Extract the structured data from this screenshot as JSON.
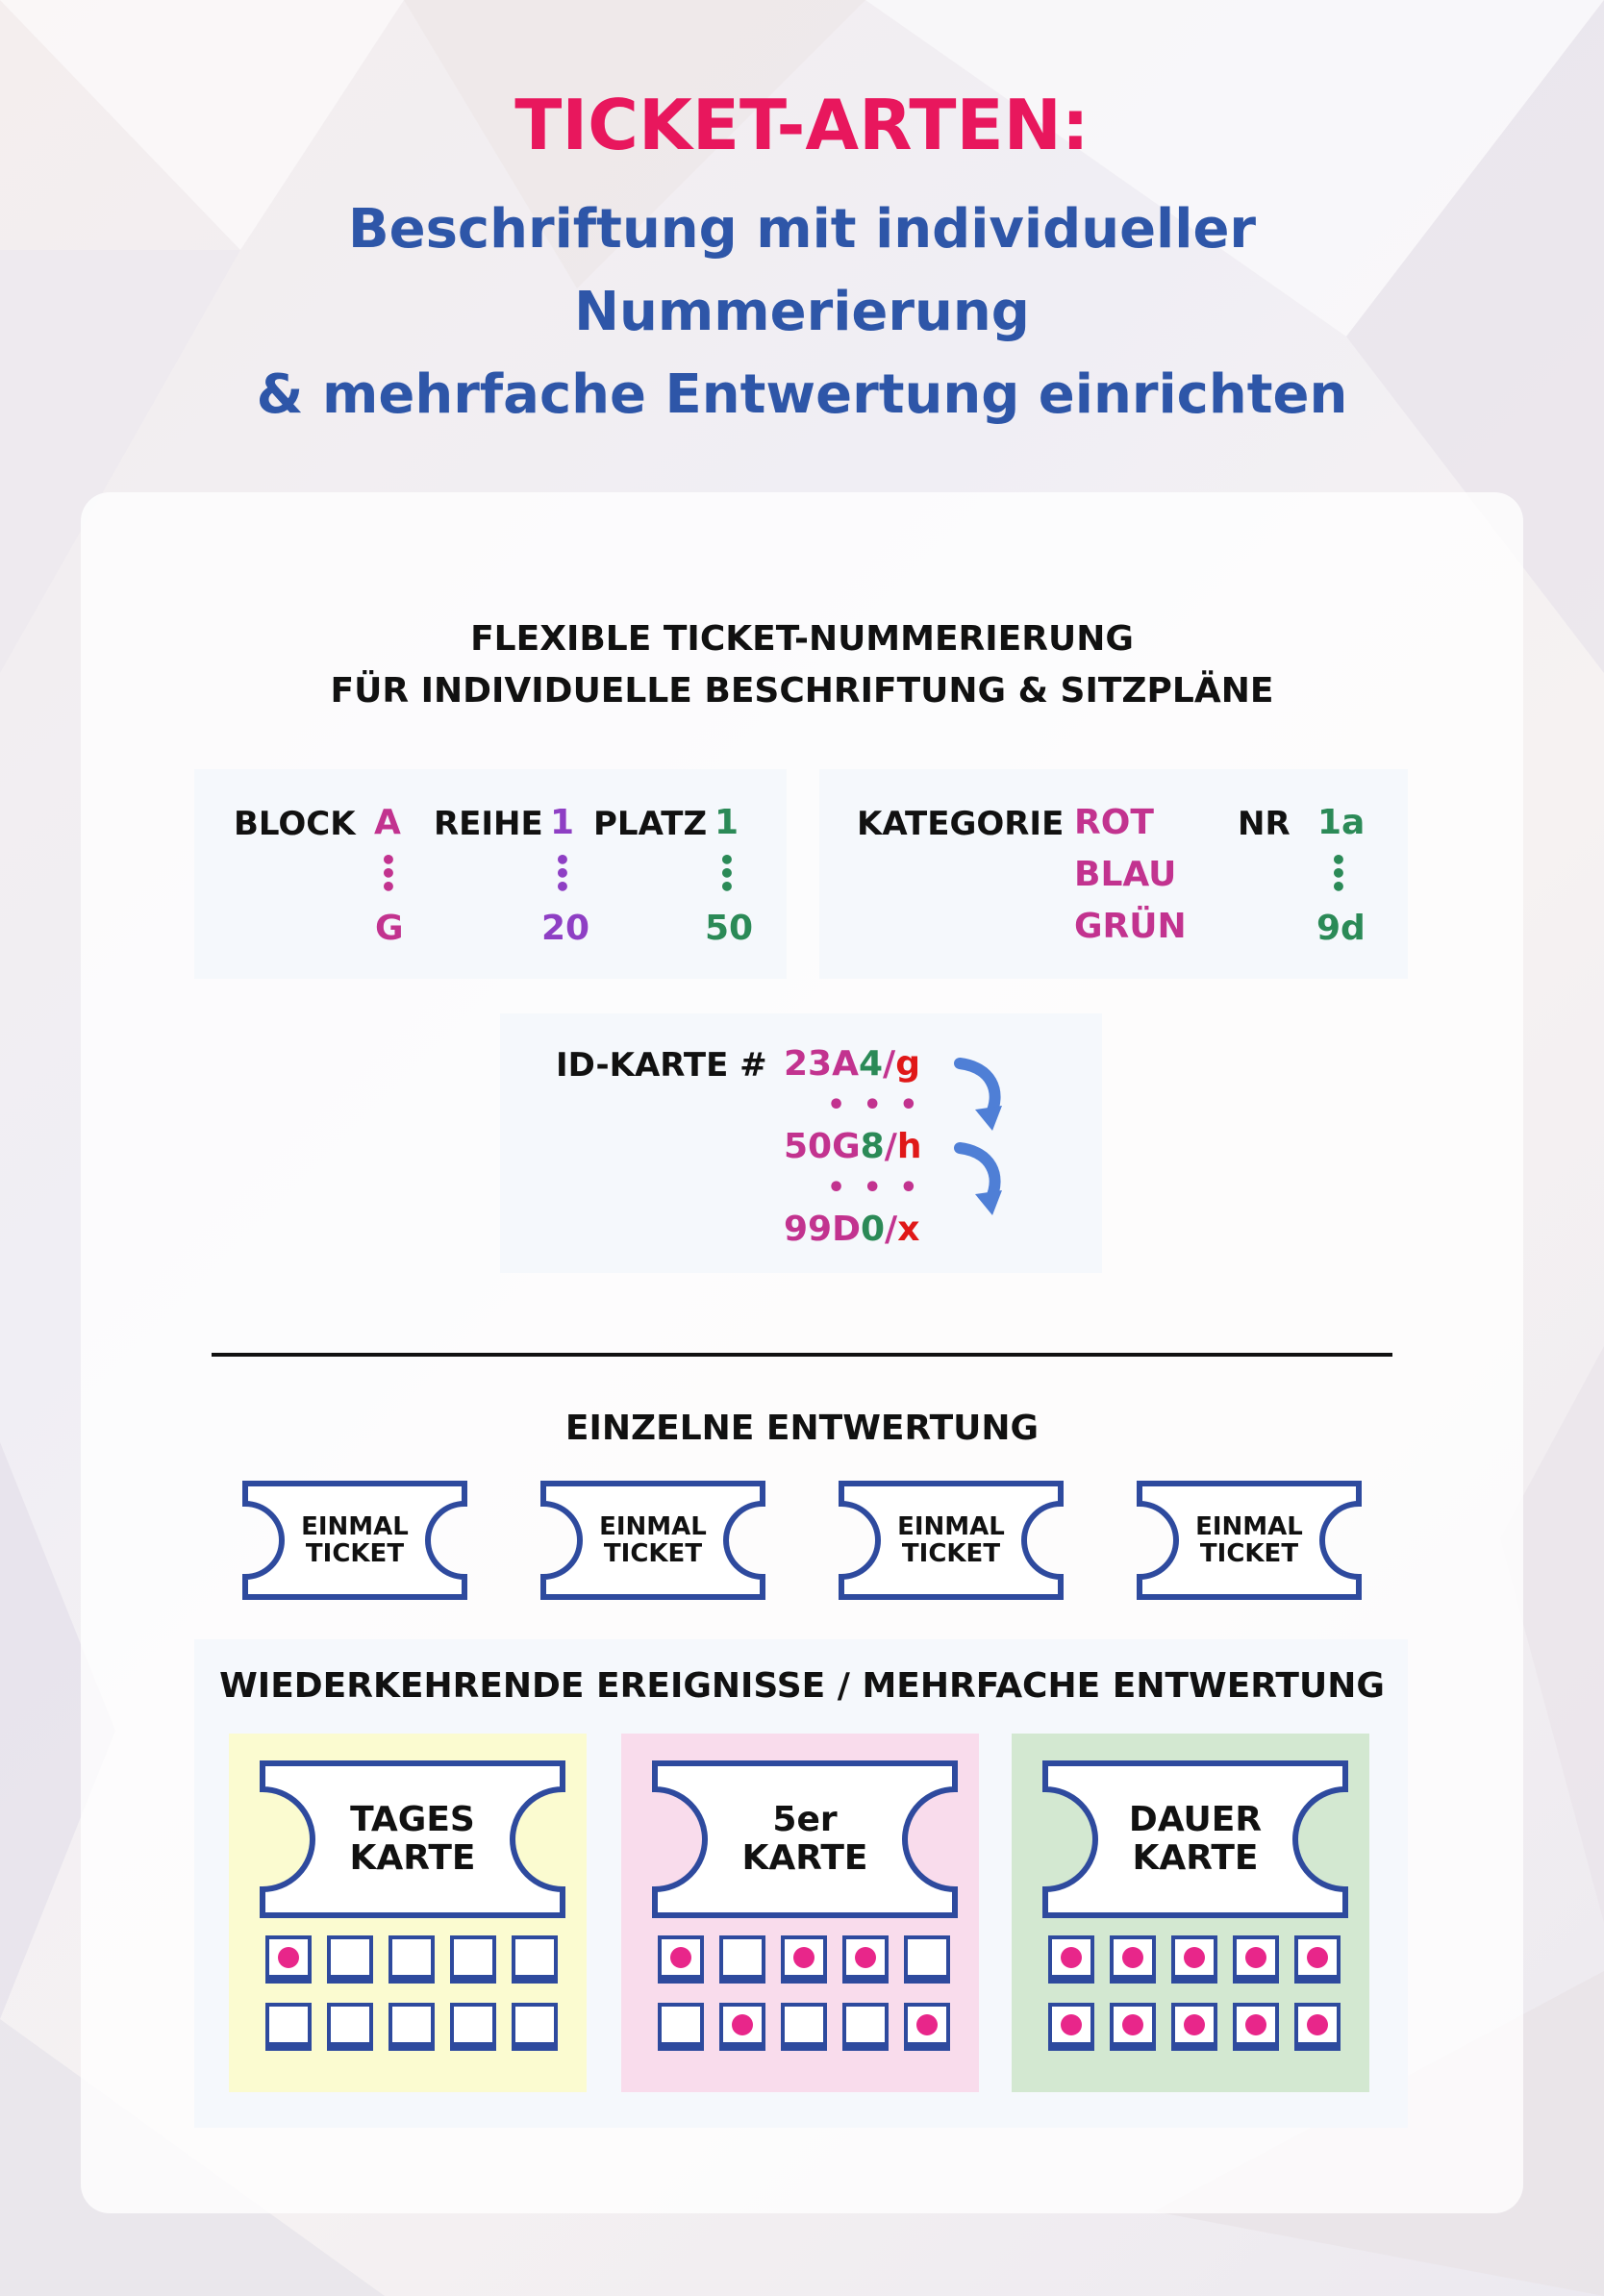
{
  "header": {
    "title": "TICKET-ARTEN:",
    "subtitle_lines": [
      "Beschriftung mit individueller",
      "Nummerierung",
      "& mehrfache Entwertung einrichten"
    ]
  },
  "numbering": {
    "heading_lines": [
      "FLEXIBLE TICKET-NUMMERIERUNG",
      "FÜR INDIVIDUELLE BESCHRIFTUNG & SITZPLÄNE"
    ],
    "seat": {
      "block_label": "BLOCK",
      "block_from": "A",
      "block_to": "G",
      "row_label": "REIHE",
      "row_from": "1",
      "row_to": "20",
      "seat_label": "PLATZ",
      "seat_from": "1",
      "seat_to": "50"
    },
    "category": {
      "label": "KATEGORIE",
      "values": [
        "ROT",
        "BLAU",
        "GRÜN"
      ],
      "nr_label": "NR",
      "nr_from": "1a",
      "nr_to": "9d"
    },
    "id_card": {
      "label": "ID-KARTE #",
      "ids": [
        {
          "a": "23A",
          "b": "4",
          "c": "/",
          "d": "g"
        },
        {
          "a": "50G",
          "b": "8",
          "c": "/",
          "d": "h"
        },
        {
          "a": "99D",
          "b": "0",
          "c": "/",
          "d": "x"
        }
      ],
      "ellipsis": "• • •"
    }
  },
  "single": {
    "heading": "EINZELNE ENTWERTUNG",
    "tickets": [
      {
        "line1": "EINMAL",
        "line2": "TICKET"
      },
      {
        "line1": "EINMAL",
        "line2": "TICKET"
      },
      {
        "line1": "EINMAL",
        "line2": "TICKET"
      },
      {
        "line1": "EINMAL",
        "line2": "TICKET"
      }
    ]
  },
  "multi": {
    "heading": "WIEDERKEHRENDE EREIGNISSE / MEHRFACHE ENTWERTUNG",
    "cards": [
      {
        "line1": "TAGES",
        "line2": "KARTE",
        "bg": "#fbfbd0",
        "punched": [
          [
            1,
            0,
            0,
            0,
            0
          ],
          [
            0,
            0,
            0,
            0,
            0
          ]
        ]
      },
      {
        "line1": "5er",
        "line2": "KARTE",
        "bg": "#f9dcec",
        "punched": [
          [
            1,
            0,
            1,
            1,
            0
          ],
          [
            0,
            1,
            0,
            0,
            1
          ]
        ]
      },
      {
        "line1": "DAUER",
        "line2": "KARTE",
        "bg": "#d3e8d1",
        "punched": [
          [
            1,
            1,
            1,
            1,
            1
          ],
          [
            1,
            1,
            1,
            1,
            1
          ]
        ]
      }
    ]
  },
  "colors": {
    "title": "#e8175d",
    "subtitle": "#2e56a8",
    "ticket_border": "#2e4a9e",
    "magenta": "#c2338f",
    "purple": "#8e3fc4",
    "green": "#2b8a57",
    "red": "#e01818",
    "arrow": "#4f7fd6",
    "punch": "#e8268a"
  }
}
